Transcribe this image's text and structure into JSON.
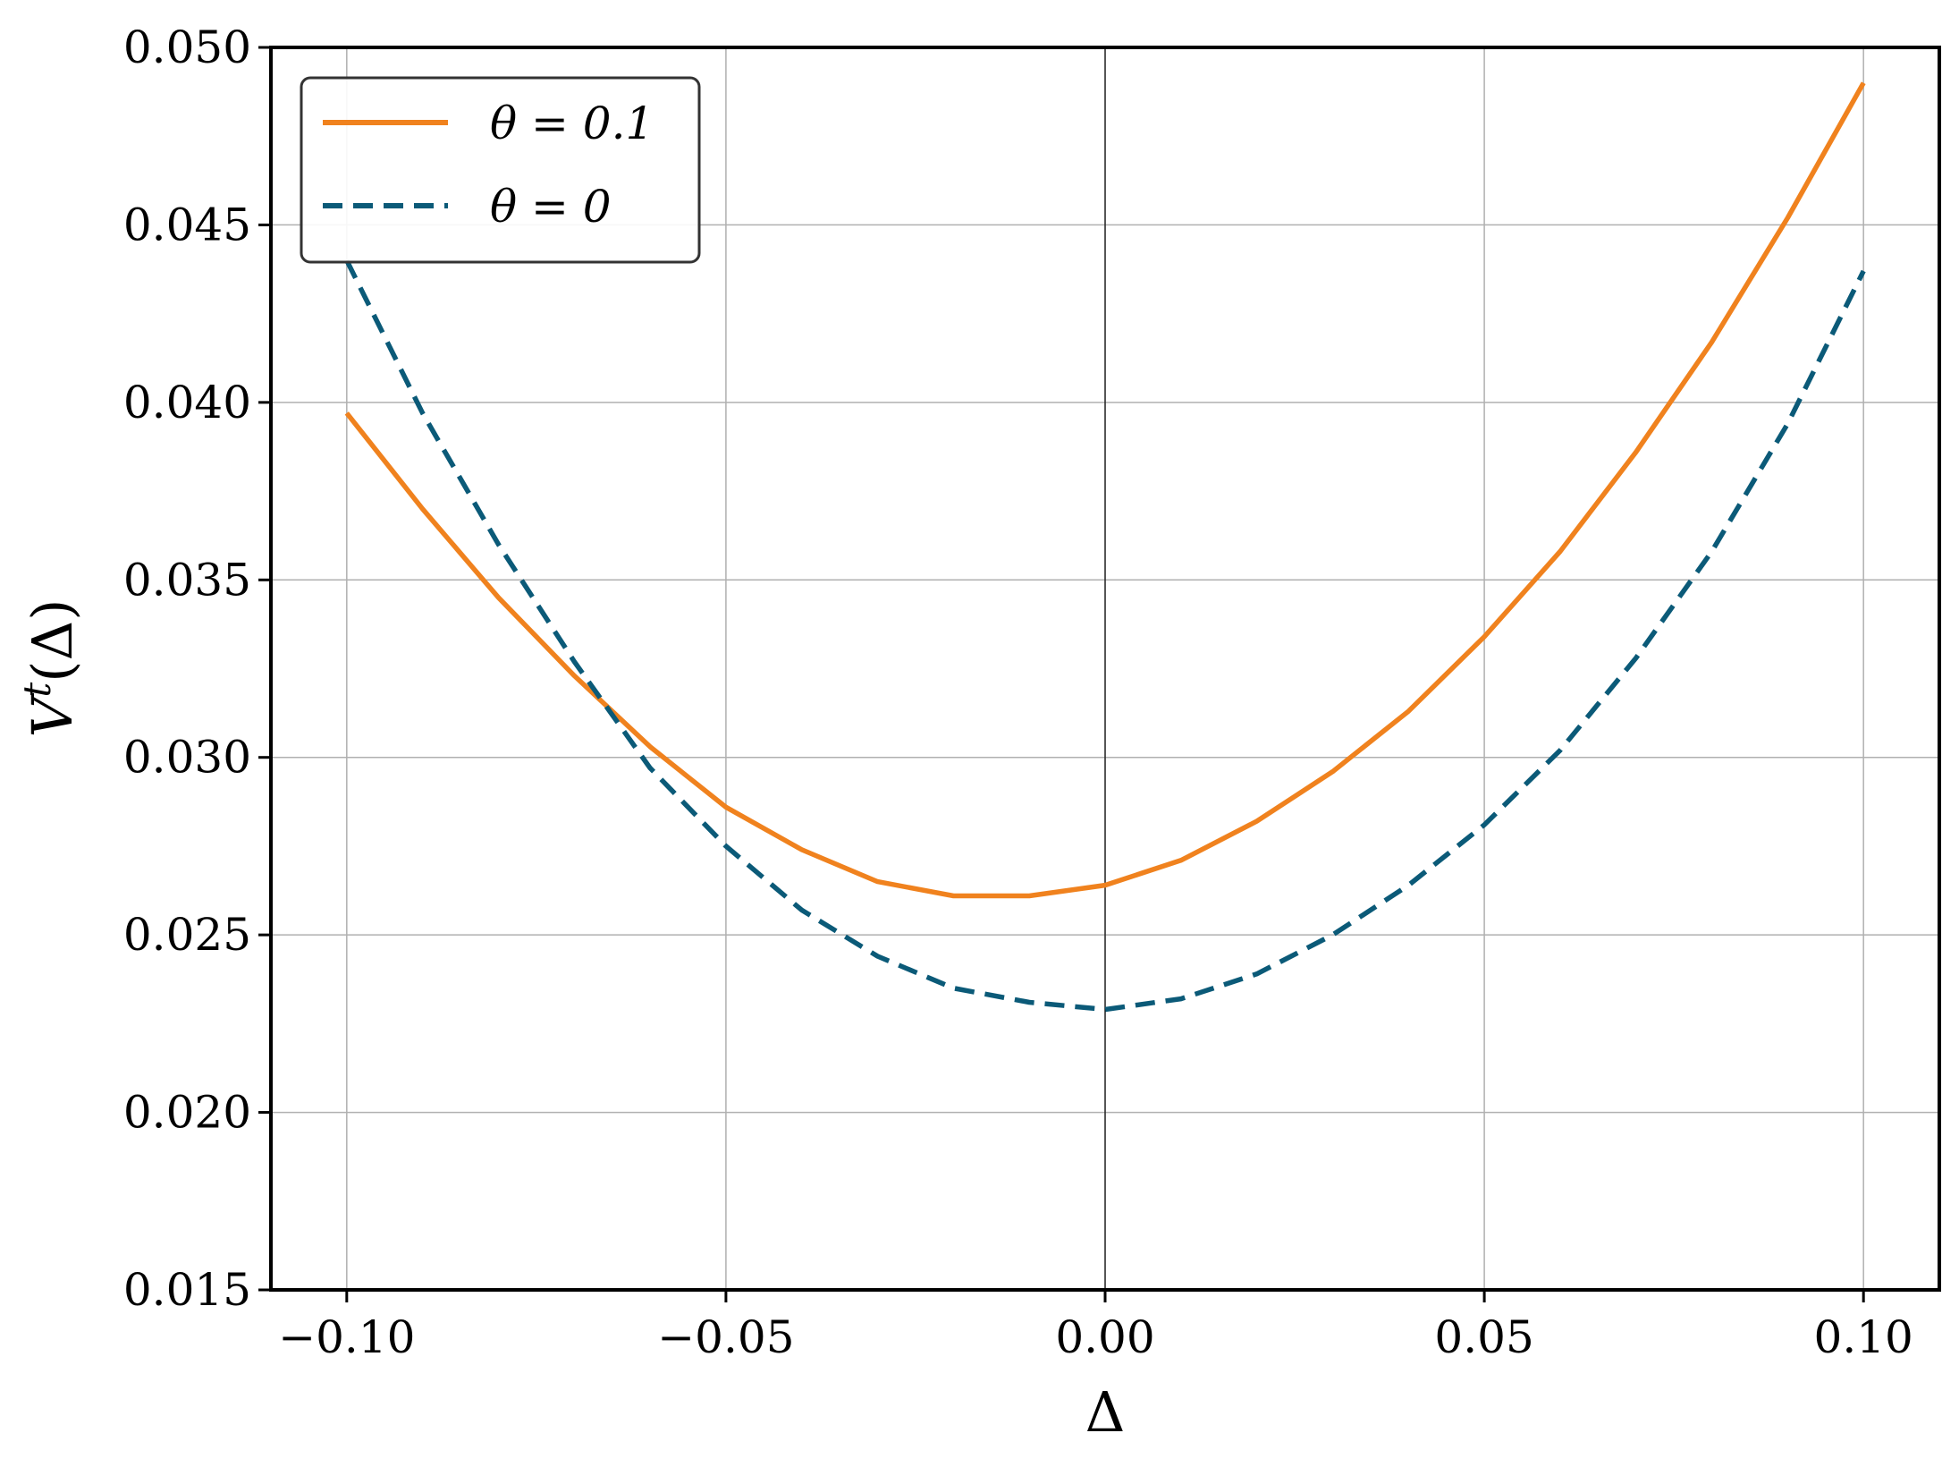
{
  "chart_data": {
    "type": "line",
    "xlabel": "Δ",
    "ylabel_main": "V",
    "ylabel_sup": "t",
    "ylabel_arg": "(Δ)",
    "xlim": [
      -0.11,
      0.11
    ],
    "ylim": [
      0.015,
      0.05
    ],
    "xticks": [
      -0.1,
      -0.05,
      0.0,
      0.05,
      0.1
    ],
    "xtick_labels": [
      "−0.10",
      "−0.05",
      "0.00",
      "0.05",
      "0.10"
    ],
    "yticks": [
      0.015,
      0.02,
      0.025,
      0.03,
      0.035,
      0.04,
      0.045,
      0.05
    ],
    "ytick_labels": [
      "0.015",
      "0.020",
      "0.025",
      "0.030",
      "0.035",
      "0.040",
      "0.045",
      "0.050"
    ],
    "grid": true,
    "legend_position": "top-left",
    "series": [
      {
        "name": "θ = 0.1",
        "style": "solid",
        "color": "#f0821e",
        "x": [
          -0.1,
          -0.09,
          -0.08,
          -0.07,
          -0.06,
          -0.05,
          -0.04,
          -0.03,
          -0.02,
          -0.01,
          0.0,
          0.01,
          0.02,
          0.03,
          0.04,
          0.05,
          0.06,
          0.07,
          0.08,
          0.09,
          0.1
        ],
        "y": [
          0.0397,
          0.037,
          0.0345,
          0.0323,
          0.0303,
          0.0286,
          0.0274,
          0.0265,
          0.0261,
          0.0261,
          0.0264,
          0.0271,
          0.0282,
          0.0296,
          0.0313,
          0.0334,
          0.0358,
          0.0386,
          0.0417,
          0.0452,
          0.049
        ]
      },
      {
        "name": "θ = 0",
        "style": "dashed",
        "color": "#0b5a78",
        "x": [
          -0.1,
          -0.09,
          -0.08,
          -0.07,
          -0.06,
          -0.05,
          -0.04,
          -0.03,
          -0.02,
          -0.01,
          0.0,
          0.01,
          0.02,
          0.03,
          0.04,
          0.05,
          0.06,
          0.07,
          0.08,
          0.09,
          0.1
        ],
        "y": [
          0.044,
          0.0397,
          0.036,
          0.0327,
          0.0297,
          0.0275,
          0.0257,
          0.0244,
          0.0235,
          0.0231,
          0.0229,
          0.0232,
          0.0239,
          0.025,
          0.0264,
          0.0281,
          0.0302,
          0.0328,
          0.0358,
          0.0394,
          0.0437
        ]
      }
    ]
  },
  "colors": {
    "grid": "#b0b0b0",
    "axes": "#000000",
    "zero_line": "#000000",
    "legend_border": "#333333"
  }
}
